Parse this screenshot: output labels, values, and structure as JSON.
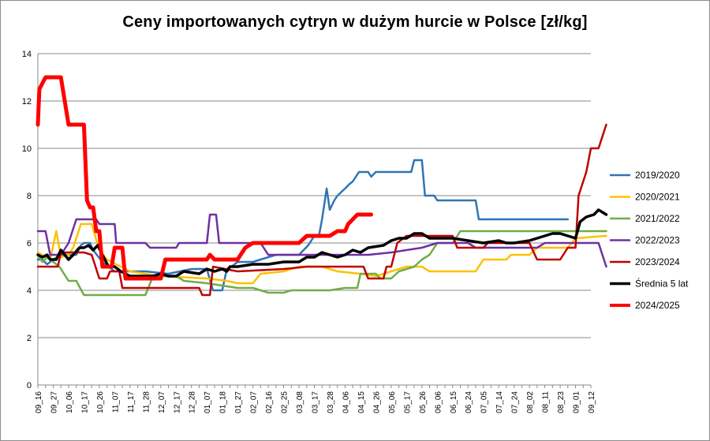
{
  "chart_data": {
    "type": "line",
    "title": "Ceny importowanych cytryn w dużym hurcie w Polsce [zł/kg]",
    "xlabel": "",
    "ylabel": "",
    "ylim": [
      0,
      14
    ],
    "y_ticks": [
      0,
      2,
      4,
      6,
      8,
      10,
      12,
      14
    ],
    "grid": "horizontal",
    "legend_position": "right",
    "x_tick_labels": [
      "09_16",
      "09_27",
      "10_06",
      "10_17",
      "10_26",
      "11_07",
      "11_17",
      "11_28",
      "12_07",
      "12_17",
      "12_28",
      "01_07",
      "01_18",
      "01_27",
      "02_07",
      "02_16",
      "02_25",
      "03_08",
      "03_17",
      "03_28",
      "04_06",
      "04_15",
      "04_26",
      "05_06",
      "05_17",
      "05_26",
      "06_06",
      "06_15",
      "06_24",
      "07_05",
      "07_14",
      "07_24",
      "08_02",
      "08_11",
      "08_23",
      "09_01",
      "09_12"
    ],
    "series": [
      {
        "name": "2019/2020",
        "color": "#2e75b6",
        "width": 2.5,
        "points": [
          [
            0,
            5.3
          ],
          [
            0.3,
            5.3
          ],
          [
            0.6,
            5.1
          ],
          [
            1,
            5.3
          ],
          [
            1.5,
            5.5
          ],
          [
            2,
            5.5
          ],
          [
            2.5,
            5.5
          ],
          [
            2.8,
            5.9
          ],
          [
            3,
            6.0
          ],
          [
            3.4,
            6.0
          ],
          [
            3.6,
            5.7
          ],
          [
            4.2,
            5.2
          ],
          [
            5,
            4.8
          ],
          [
            7,
            4.8
          ],
          [
            8.5,
            4.7
          ],
          [
            10,
            4.9
          ],
          [
            11,
            4.9
          ],
          [
            11.4,
            4.0
          ],
          [
            12,
            4.0
          ],
          [
            12.3,
            4.9
          ],
          [
            12.6,
            5.0
          ],
          [
            13,
            5.2
          ],
          [
            14,
            5.2
          ],
          [
            15.5,
            5.5
          ],
          [
            17,
            5.5
          ],
          [
            17.6,
            5.9
          ],
          [
            18,
            6.3
          ],
          [
            18.3,
            6.3
          ],
          [
            18.5,
            7.0
          ],
          [
            18.8,
            8.3
          ],
          [
            19,
            7.4
          ],
          [
            19.3,
            7.8
          ],
          [
            19.5,
            8.0
          ],
          [
            20,
            8.3
          ],
          [
            20.3,
            8.5
          ],
          [
            20.5,
            8.6
          ],
          [
            20.9,
            9.0
          ],
          [
            21.5,
            9.0
          ],
          [
            21.7,
            8.8
          ],
          [
            22,
            9.0
          ],
          [
            23.5,
            9.0
          ],
          [
            24.3,
            9.0
          ],
          [
            24.5,
            9.5
          ],
          [
            25,
            9.5
          ],
          [
            25.2,
            8.0
          ],
          [
            25.8,
            8.0
          ],
          [
            26,
            7.8
          ],
          [
            28.5,
            7.8
          ],
          [
            28.7,
            7.0
          ],
          [
            34.5,
            7.0
          ]
        ]
      },
      {
        "name": "2020/2021",
        "color": "#ffc000",
        "width": 2.5,
        "points": [
          [
            0,
            5.6
          ],
          [
            0.5,
            5.4
          ],
          [
            0.8,
            5.3
          ],
          [
            1.2,
            6.5
          ],
          [
            1.5,
            5.4
          ],
          [
            2,
            5.5
          ],
          [
            2.3,
            5.8
          ],
          [
            2.8,
            6.8
          ],
          [
            3.5,
            6.8
          ],
          [
            4,
            5.7
          ],
          [
            4.5,
            5.3
          ],
          [
            6,
            4.8
          ],
          [
            8,
            4.6
          ],
          [
            11,
            4.5
          ],
          [
            12.3,
            4.4
          ],
          [
            13,
            4.3
          ],
          [
            14,
            4.3
          ],
          [
            14.5,
            4.7
          ],
          [
            16,
            4.8
          ],
          [
            17,
            5.0
          ],
          [
            18.5,
            5.0
          ],
          [
            19.5,
            4.8
          ],
          [
            21,
            4.7
          ],
          [
            22,
            4.6
          ],
          [
            23,
            4.8
          ],
          [
            24,
            5.0
          ],
          [
            25,
            5.0
          ],
          [
            25.5,
            4.8
          ],
          [
            28.5,
            4.8
          ],
          [
            29,
            5.3
          ],
          [
            30.5,
            5.3
          ],
          [
            30.8,
            5.5
          ],
          [
            32,
            5.5
          ],
          [
            32.5,
            5.8
          ],
          [
            34.5,
            5.8
          ],
          [
            35,
            6.2
          ],
          [
            37,
            6.3
          ]
        ]
      },
      {
        "name": "2021/2022",
        "color": "#70ad47",
        "width": 2.5,
        "points": [
          [
            0,
            5.5
          ],
          [
            0.3,
            5.2
          ],
          [
            0.6,
            5.4
          ],
          [
            1.4,
            5.0
          ],
          [
            2,
            4.4
          ],
          [
            2.5,
            4.4
          ],
          [
            3,
            3.8
          ],
          [
            7,
            3.8
          ],
          [
            7.5,
            4.6
          ],
          [
            9,
            4.6
          ],
          [
            9.5,
            4.4
          ],
          [
            11,
            4.3
          ],
          [
            12,
            4.2
          ],
          [
            13,
            4.1
          ],
          [
            14,
            4.1
          ],
          [
            14.5,
            4.0
          ],
          [
            15,
            3.9
          ],
          [
            16,
            3.9
          ],
          [
            16.5,
            4.0
          ],
          [
            17.2,
            4.0
          ],
          [
            18,
            4.0
          ],
          [
            19,
            4.0
          ],
          [
            20,
            4.1
          ],
          [
            20.8,
            4.1
          ],
          [
            21,
            4.7
          ],
          [
            22,
            4.7
          ],
          [
            22.3,
            4.5
          ],
          [
            23,
            4.5
          ],
          [
            23.5,
            4.8
          ],
          [
            24.5,
            5.0
          ],
          [
            25,
            5.3
          ],
          [
            25.5,
            5.5
          ],
          [
            26,
            6.0
          ],
          [
            27,
            6.0
          ],
          [
            27.5,
            6.5
          ],
          [
            37,
            6.5
          ]
        ]
      },
      {
        "name": "2022/2023",
        "color": "#7030a0",
        "width": 2.5,
        "points": [
          [
            0,
            6.5
          ],
          [
            0.5,
            6.5
          ],
          [
            0.8,
            5.5
          ],
          [
            1.5,
            5.5
          ],
          [
            2,
            6.0
          ],
          [
            2.5,
            7.0
          ],
          [
            3.8,
            7.0
          ],
          [
            4,
            6.8
          ],
          [
            5,
            6.8
          ],
          [
            5.1,
            6.0
          ],
          [
            6,
            6.0
          ],
          [
            7,
            6.0
          ],
          [
            7.3,
            5.8
          ],
          [
            9,
            5.8
          ],
          [
            9.2,
            6.0
          ],
          [
            11,
            6.0
          ],
          [
            11.2,
            7.2
          ],
          [
            11.6,
            7.2
          ],
          [
            11.8,
            6.0
          ],
          [
            14.5,
            6.0
          ],
          [
            15,
            5.5
          ],
          [
            19,
            5.5
          ],
          [
            20,
            5.5
          ],
          [
            21.5,
            5.5
          ],
          [
            23,
            5.6
          ],
          [
            25,
            5.8
          ],
          [
            26,
            6.0
          ],
          [
            28,
            6.0
          ],
          [
            28.5,
            5.8
          ],
          [
            30,
            5.8
          ],
          [
            32.5,
            5.8
          ],
          [
            33,
            6.0
          ],
          [
            36.5,
            6.0
          ],
          [
            37,
            5.0
          ]
        ]
      },
      {
        "name": "2023/2024",
        "color": "#c00000",
        "width": 2.5,
        "points": [
          [
            0,
            5.0
          ],
          [
            1.3,
            5.0
          ],
          [
            1.5,
            5.6
          ],
          [
            3,
            5.6
          ],
          [
            3.5,
            5.5
          ],
          [
            4,
            4.5
          ],
          [
            4.5,
            4.5
          ],
          [
            4.7,
            4.8
          ],
          [
            5.3,
            4.8
          ],
          [
            5.5,
            4.1
          ],
          [
            10.5,
            4.1
          ],
          [
            10.7,
            3.8
          ],
          [
            11.2,
            3.8
          ],
          [
            11.4,
            5.0
          ],
          [
            13,
            4.8
          ],
          [
            16,
            4.9
          ],
          [
            17.5,
            5.0
          ],
          [
            18.5,
            5.0
          ],
          [
            21.2,
            5.0
          ],
          [
            21.5,
            4.5
          ],
          [
            22.5,
            4.5
          ],
          [
            22.7,
            5.0
          ],
          [
            23,
            5.0
          ],
          [
            23.4,
            6.0
          ],
          [
            24,
            6.3
          ],
          [
            27,
            6.3
          ],
          [
            27.3,
            5.8
          ],
          [
            29,
            5.8
          ],
          [
            29.3,
            6.0
          ],
          [
            32,
            6.0
          ],
          [
            32.5,
            5.3
          ],
          [
            34,
            5.3
          ],
          [
            34.5,
            5.8
          ],
          [
            35,
            5.8
          ],
          [
            35.2,
            8.0
          ],
          [
            35.7,
            9.0
          ],
          [
            36,
            10.0
          ],
          [
            36.5,
            10.0
          ],
          [
            37,
            11.0
          ]
        ]
      },
      {
        "name": "Średnia 5 lat",
        "color": "#000000",
        "width": 3.5,
        "points": [
          [
            0,
            5.5
          ],
          [
            0.3,
            5.4
          ],
          [
            0.6,
            5.5
          ],
          [
            0.8,
            5.3
          ],
          [
            1.2,
            5.3
          ],
          [
            1.5,
            5.7
          ],
          [
            2,
            5.3
          ],
          [
            2.3,
            5.5
          ],
          [
            2.7,
            5.8
          ],
          [
            3,
            5.8
          ],
          [
            3.3,
            5.9
          ],
          [
            3.6,
            5.7
          ],
          [
            3.9,
            5.9
          ],
          [
            4.2,
            5.5
          ],
          [
            4.6,
            5.0
          ],
          [
            5,
            5.0
          ],
          [
            5.4,
            4.8
          ],
          [
            6,
            4.6
          ],
          [
            7.5,
            4.6
          ],
          [
            8,
            4.7
          ],
          [
            8.5,
            4.6
          ],
          [
            9,
            4.6
          ],
          [
            9.5,
            4.8
          ],
          [
            10.5,
            4.7
          ],
          [
            11,
            4.9
          ],
          [
            11.5,
            4.8
          ],
          [
            12,
            4.9
          ],
          [
            12.3,
            4.8
          ],
          [
            12.5,
            5.0
          ],
          [
            13,
            5.0
          ],
          [
            14,
            5.1
          ],
          [
            15,
            5.1
          ],
          [
            16,
            5.2
          ],
          [
            17,
            5.2
          ],
          [
            17.5,
            5.4
          ],
          [
            18,
            5.4
          ],
          [
            18.5,
            5.6
          ],
          [
            19,
            5.5
          ],
          [
            19.5,
            5.4
          ],
          [
            20,
            5.5
          ],
          [
            20.5,
            5.7
          ],
          [
            21,
            5.6
          ],
          [
            21.5,
            5.8
          ],
          [
            22.5,
            5.9
          ],
          [
            23,
            6.1
          ],
          [
            23.5,
            6.2
          ],
          [
            24,
            6.2
          ],
          [
            24.5,
            6.4
          ],
          [
            25,
            6.4
          ],
          [
            25.5,
            6.2
          ],
          [
            26.5,
            6.2
          ],
          [
            27,
            6.2
          ],
          [
            28,
            6.1
          ],
          [
            29,
            6.0
          ],
          [
            30,
            6.1
          ],
          [
            30.5,
            6.0
          ],
          [
            31,
            6.0
          ],
          [
            32,
            6.1
          ],
          [
            32.5,
            6.2
          ],
          [
            33,
            6.3
          ],
          [
            33.5,
            6.4
          ],
          [
            34,
            6.4
          ],
          [
            34.5,
            6.3
          ],
          [
            35,
            6.2
          ],
          [
            35.3,
            6.9
          ],
          [
            35.7,
            7.1
          ],
          [
            36.2,
            7.2
          ],
          [
            36.5,
            7.4
          ],
          [
            37,
            7.2
          ]
        ]
      },
      {
        "name": "2024/2025",
        "color": "#ff0000",
        "width": 5,
        "points": [
          [
            0,
            11.0
          ],
          [
            0.1,
            12.5
          ],
          [
            0.5,
            13.0
          ],
          [
            1.5,
            13.0
          ],
          [
            2,
            11.0
          ],
          [
            3,
            11.0
          ],
          [
            3.2,
            7.8
          ],
          [
            3.4,
            7.5
          ],
          [
            3.6,
            7.5
          ],
          [
            3.8,
            6.5
          ],
          [
            4,
            6.5
          ],
          [
            4.2,
            5.0
          ],
          [
            4.8,
            5.0
          ],
          [
            5,
            5.8
          ],
          [
            5.5,
            5.8
          ],
          [
            5.7,
            4.5
          ],
          [
            8,
            4.5
          ],
          [
            8.3,
            5.3
          ],
          [
            11,
            5.3
          ],
          [
            11.2,
            5.5
          ],
          [
            11.5,
            5.3
          ],
          [
            13,
            5.3
          ],
          [
            13.5,
            5.8
          ],
          [
            14,
            6.0
          ],
          [
            17,
            6.0
          ],
          [
            17.5,
            6.3
          ],
          [
            19,
            6.3
          ],
          [
            19.5,
            6.5
          ],
          [
            20,
            6.5
          ],
          [
            20.2,
            6.8
          ],
          [
            20.5,
            7.0
          ],
          [
            20.8,
            7.2
          ],
          [
            21,
            7.2
          ],
          [
            21.5,
            7.2
          ],
          [
            21.7,
            7.2
          ]
        ]
      }
    ]
  }
}
